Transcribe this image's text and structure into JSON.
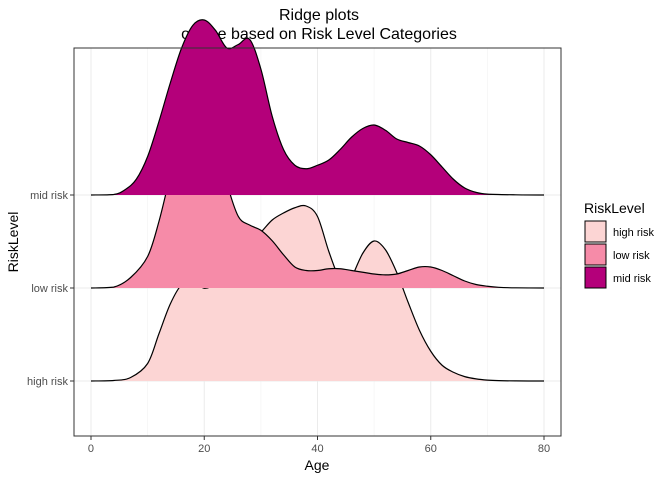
{
  "chart_data": {
    "type": "area",
    "subtype": "ridgeline",
    "title_line1": "Ridge plots",
    "title_line2": "of Age based on Risk Level Categories",
    "xlabel": "Age",
    "ylabel": "RiskLevel",
    "xlim": [
      -3,
      83
    ],
    "x_ticks": [
      0,
      20,
      40,
      60,
      80
    ],
    "grid": true,
    "categories": [
      "high risk",
      "low risk",
      "mid risk"
    ],
    "legend": {
      "title": "RiskLevel",
      "position": "right",
      "entries": [
        "high risk",
        "low risk",
        "mid risk"
      ]
    },
    "series": [
      {
        "name": "high risk",
        "color": "#FCD5D4",
        "x": [
          0,
          4,
          7,
          10,
          12,
          14,
          16,
          18,
          20,
          22,
          24,
          26,
          28,
          30,
          32,
          34,
          36,
          38,
          40,
          42,
          44,
          45,
          46,
          48,
          50,
          52,
          54,
          56,
          58,
          60,
          62,
          64,
          66,
          68,
          70,
          72,
          75,
          80
        ],
        "density": [
          0.0,
          0.003,
          0.02,
          0.1,
          0.27,
          0.44,
          0.55,
          0.57,
          0.53,
          0.56,
          0.65,
          0.73,
          0.79,
          0.85,
          0.92,
          0.96,
          0.99,
          1.0,
          0.94,
          0.74,
          0.57,
          0.55,
          0.59,
          0.73,
          0.8,
          0.75,
          0.62,
          0.45,
          0.29,
          0.17,
          0.09,
          0.05,
          0.025,
          0.012,
          0.005,
          0.002,
          0.0005,
          0.0
        ]
      },
      {
        "name": "low risk",
        "color": "#F68BA8",
        "x": [
          0,
          4,
          7,
          10,
          12,
          14,
          16,
          18,
          20,
          22,
          24,
          26,
          28,
          30,
          32,
          34,
          36,
          38,
          40,
          42,
          44,
          46,
          48,
          50,
          52,
          54,
          56,
          58,
          60,
          62,
          64,
          66,
          68,
          70,
          72,
          75,
          80
        ],
        "density": [
          0.0,
          0.005,
          0.06,
          0.18,
          0.38,
          0.64,
          0.86,
          0.99,
          1.0,
          0.87,
          0.6,
          0.41,
          0.36,
          0.33,
          0.27,
          0.19,
          0.12,
          0.1,
          0.1,
          0.11,
          0.11,
          0.1,
          0.09,
          0.08,
          0.075,
          0.08,
          0.1,
          0.12,
          0.12,
          0.1,
          0.07,
          0.04,
          0.02,
          0.01,
          0.004,
          0.001,
          0.0
        ]
      },
      {
        "name": "mid risk",
        "color": "#B4007A",
        "x": [
          0,
          4,
          6,
          8,
          10,
          12,
          14,
          16,
          18,
          20,
          22,
          24,
          26,
          28,
          30,
          32,
          34,
          36,
          38,
          40,
          42,
          44,
          46,
          48,
          50,
          52,
          54,
          56,
          58,
          60,
          62,
          64,
          66,
          68,
          70,
          75,
          80
        ],
        "density": [
          0.0,
          0.003,
          0.03,
          0.09,
          0.22,
          0.42,
          0.64,
          0.84,
          0.97,
          1.0,
          0.94,
          0.84,
          0.86,
          0.89,
          0.72,
          0.45,
          0.26,
          0.17,
          0.15,
          0.17,
          0.2,
          0.26,
          0.33,
          0.38,
          0.4,
          0.37,
          0.32,
          0.3,
          0.28,
          0.23,
          0.16,
          0.09,
          0.04,
          0.015,
          0.005,
          0.001,
          0.0
        ]
      }
    ]
  }
}
